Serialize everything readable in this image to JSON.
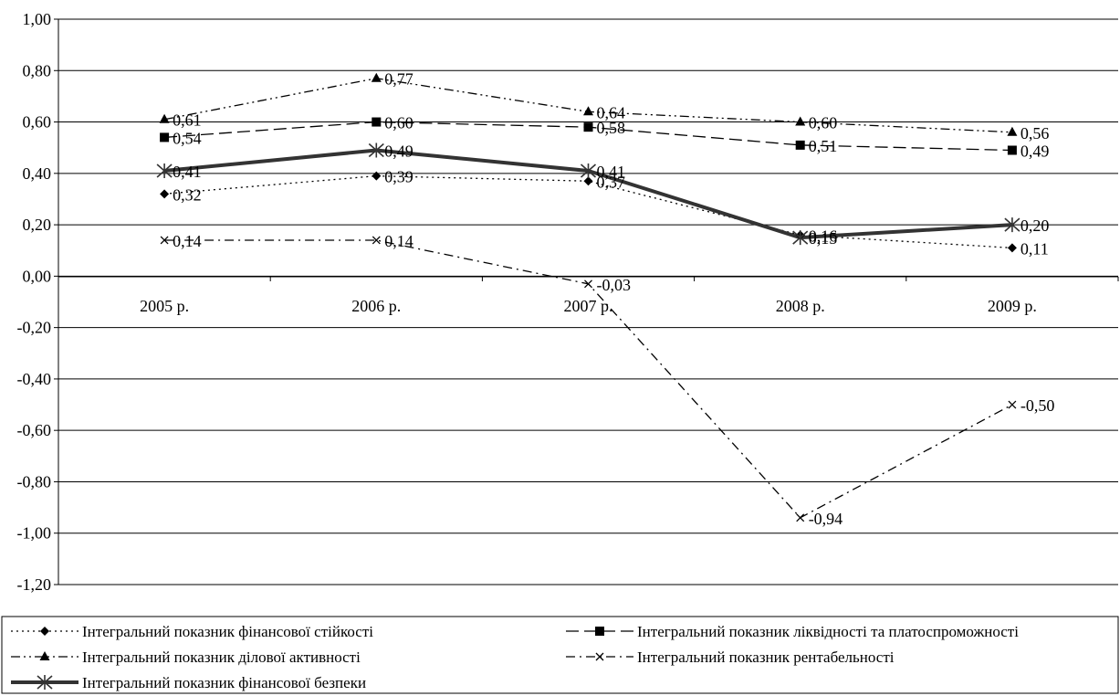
{
  "chart_data": {
    "type": "line",
    "categories": [
      "2005 р.",
      "2006 р.",
      "2007 р.",
      "2008 р.",
      "2009 р."
    ],
    "ylim": [
      -1.2,
      1.0
    ],
    "ytick_step": 0.2,
    "ytick_labels": [
      "1,00",
      "0,80",
      "0,60",
      "0,40",
      "0,20",
      "0,00",
      "-0,20",
      "-0,40",
      "-0,60",
      "-0,80",
      "-1,00",
      "-1,20"
    ],
    "grid": true,
    "legend_position": "bottom",
    "series": [
      {
        "name": "Інтегральний показник фінансової стійкості",
        "values": [
          0.32,
          0.39,
          0.37,
          0.16,
          0.11
        ],
        "labels": [
          "0,32",
          "0,39",
          "0,37",
          "0,16",
          "0,11"
        ],
        "marker": "diamond",
        "dash": "dotted",
        "color": "#000000"
      },
      {
        "name": "Інтегральний показник ліквідності та платоспроможності",
        "values": [
          0.54,
          0.6,
          0.58,
          0.51,
          0.49
        ],
        "labels": [
          "0,54",
          "0,60",
          "0,58",
          "0,51",
          "0,49"
        ],
        "marker": "square",
        "dash": "long-dash",
        "color": "#000000"
      },
      {
        "name": "Інтегральний показник ділової активності",
        "values": [
          0.61,
          0.77,
          0.64,
          0.6,
          0.56
        ],
        "labels": [
          "0,61",
          "0,77",
          "0,64",
          "0,60",
          "0,56"
        ],
        "marker": "triangle",
        "dash": "dash-dot-dot",
        "color": "#000000"
      },
      {
        "name": "Інтегральний показник рентабельності",
        "values": [
          0.14,
          0.14,
          -0.03,
          -0.94,
          -0.5
        ],
        "labels": [
          "0,14",
          "0,14",
          "-0,03",
          "-0,94",
          "-0,50"
        ],
        "marker": "x",
        "dash": "dash-dot",
        "color": "#000000"
      },
      {
        "name": "Інтегральний показник фінансової безпеки",
        "values": [
          0.41,
          0.49,
          0.41,
          0.15,
          0.2
        ],
        "labels": [
          "0,41",
          "0,49",
          "0,41",
          "0,15",
          "0,20"
        ],
        "marker": "star",
        "dash": "solid-bold",
        "color": "#333333"
      }
    ]
  }
}
